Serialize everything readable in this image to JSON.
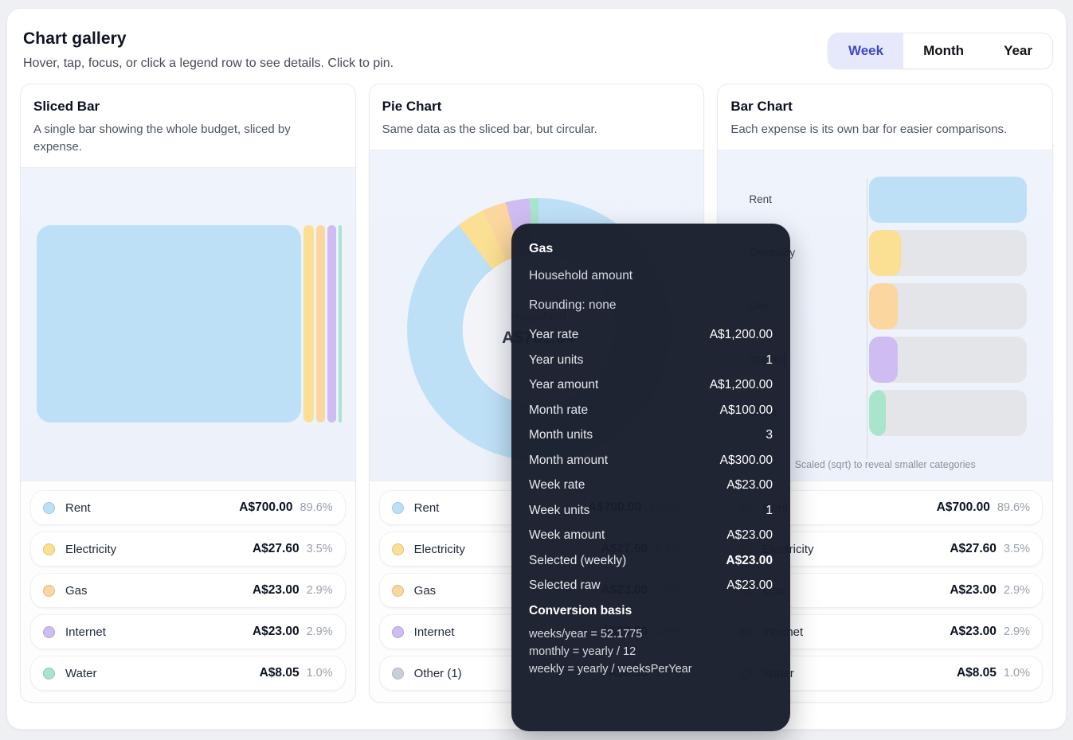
{
  "page": {
    "title": "Chart gallery",
    "subtitle": "Hover, tap, focus, or click a legend row to see details. Click to pin."
  },
  "period_toggle": {
    "options": [
      "Week",
      "Month",
      "Year"
    ],
    "selected": "Week"
  },
  "colors": {
    "rent": "#bee0f7",
    "electricity": "#fbdf92",
    "gas": "#fbd69e",
    "internet": "#cfbcf2",
    "water": "#a9e4cd",
    "other": "#c9cfd9",
    "bar_track": "#e3e5e9",
    "toggle_active_bg": "#e6e9fb",
    "toggle_active_text": "#3d48c5",
    "tooltip_bg": "rgba(24,30,43,0.97)"
  },
  "cards": [
    {
      "title": "Sliced Bar",
      "description": "A single bar showing the whole budget, sliced by expense.",
      "slices": [
        {
          "label": "Rent",
          "percent": 89.6,
          "color": "#bee0f7"
        },
        {
          "label": "Electricity",
          "percent": 3.5,
          "color": "#fbdf92"
        },
        {
          "label": "Gas",
          "percent": 2.9,
          "color": "#fbd69e"
        },
        {
          "label": "Internet",
          "percent": 2.9,
          "color": "#cfbcf2"
        },
        {
          "label": "Water",
          "percent": 1.0,
          "color": "#a9e4cd"
        }
      ],
      "legend": [
        {
          "label": "Rent",
          "amount": "A$700.00",
          "percent": "89.6%",
          "color": "#bee0f7"
        },
        {
          "label": "Electricity",
          "amount": "A$27.60",
          "percent": "3.5%",
          "color": "#fbdf92"
        },
        {
          "label": "Gas",
          "amount": "A$23.00",
          "percent": "2.9%",
          "color": "#fbd69e"
        },
        {
          "label": "Internet",
          "amount": "A$23.00",
          "percent": "2.9%",
          "color": "#cfbcf2"
        },
        {
          "label": "Water",
          "amount": "A$8.05",
          "percent": "1.0%",
          "color": "#a9e4cd"
        }
      ]
    },
    {
      "title": "Pie Chart",
      "description": "Same data as the sliced bar, but circular.",
      "center": {
        "label": "Household",
        "total": "A$781.64"
      },
      "slices": [
        {
          "label": "Rent",
          "percent": 89.6,
          "color": "#bee0f7"
        },
        {
          "label": "Electricity",
          "percent": 3.5,
          "color": "#fbdf92"
        },
        {
          "label": "Gas",
          "percent": 2.9,
          "color": "#fbd69e"
        },
        {
          "label": "Internet",
          "percent": 2.9,
          "color": "#cfbcf2"
        },
        {
          "label": "Water",
          "percent": 1.0,
          "color": "#a9e4cd"
        }
      ],
      "legend": [
        {
          "label": "Rent",
          "amount": "A$700.00",
          "percent": "89.6%",
          "color": "#bee0f7"
        },
        {
          "label": "Electricity",
          "amount": "A$27.60",
          "percent": "3.5%",
          "color": "#fbdf92"
        },
        {
          "label": "Gas",
          "amount": "A$23.00",
          "percent": "2.9%",
          "color": "#fbd69e"
        },
        {
          "label": "Internet",
          "amount": "A$23.00",
          "percent": "2.9%",
          "color": "#cfbcf2"
        },
        {
          "label": "Other (1)",
          "amount": "A$8.05",
          "percent": "1.0%",
          "color": "#c9cfd9"
        }
      ]
    },
    {
      "title": "Bar Chart",
      "description": "Each expense is its own bar for easier comparisons.",
      "caption": "Scaled (sqrt) to reveal smaller categories",
      "bars": [
        {
          "label": "Rent",
          "fill_pct": 100,
          "color": "#bee0f7"
        },
        {
          "label": "Electricity",
          "fill_pct": 19.9,
          "color": "#fbdf92"
        },
        {
          "label": "Gas",
          "fill_pct": 18.1,
          "color": "#fbd69e"
        },
        {
          "label": "Internet",
          "fill_pct": 18.1,
          "color": "#cfbcf2"
        },
        {
          "label": "Water",
          "fill_pct": 10.7,
          "color": "#a9e4cd"
        }
      ],
      "legend": [
        {
          "label": "Rent",
          "amount": "A$700.00",
          "percent": "89.6%",
          "color": "#bee0f7"
        },
        {
          "label": "Electricity",
          "amount": "A$27.60",
          "percent": "3.5%",
          "color": "#fbdf92"
        },
        {
          "label": "Gas",
          "amount": "A$23.00",
          "percent": "2.9%",
          "color": "#fbd69e"
        },
        {
          "label": "Internet",
          "amount": "A$23.00",
          "percent": "2.9%",
          "color": "#cfbcf2"
        },
        {
          "label": "Water",
          "amount": "A$8.05",
          "percent": "1.0%",
          "color": "#a9e4cd"
        }
      ]
    }
  ],
  "tooltip": {
    "title": "Gas",
    "subtitle": "Household amount",
    "rounding": "Rounding: none",
    "rows": [
      {
        "label": "Year rate",
        "value": "A$1,200.00",
        "bold": false
      },
      {
        "label": "Year units",
        "value": "1",
        "bold": false
      },
      {
        "label": "Year amount",
        "value": "A$1,200.00",
        "bold": false
      },
      {
        "label": "Month rate",
        "value": "A$100.00",
        "bold": false
      },
      {
        "label": "Month units",
        "value": "3",
        "bold": false
      },
      {
        "label": "Month amount",
        "value": "A$300.00",
        "bold": false
      },
      {
        "label": "Week rate",
        "value": "A$23.00",
        "bold": false
      },
      {
        "label": "Week units",
        "value": "1",
        "bold": false
      },
      {
        "label": "Week amount",
        "value": "A$23.00",
        "bold": false
      },
      {
        "label": "Selected (weekly)",
        "value": "A$23.00",
        "bold": true
      },
      {
        "label": "Selected raw",
        "value": "A$23.00",
        "bold": false
      }
    ],
    "basis_title": "Conversion basis",
    "basis_lines": [
      "weeks/year = 52.1775",
      "monthly = yearly / 12",
      "weekly = yearly / weeksPerYear"
    ]
  },
  "chart_data": [
    {
      "type": "bar",
      "variant": "single-stacked-horizontal",
      "title": "Sliced Bar",
      "categories": [
        "Rent",
        "Electricity",
        "Gas",
        "Internet",
        "Water"
      ],
      "values": [
        700.0,
        27.6,
        23.0,
        23.0,
        8.05
      ],
      "percents": [
        89.6,
        3.5,
        2.9,
        2.9,
        1.0
      ],
      "currency": "AUD",
      "period": "Week",
      "total_label": "Household",
      "total_display": "A$781.64",
      "legend_position": "bottom"
    },
    {
      "type": "pie",
      "variant": "donut",
      "title": "Pie Chart",
      "categories": [
        "Rent",
        "Electricity",
        "Gas",
        "Internet",
        "Other (1)"
      ],
      "values": [
        700.0,
        27.6,
        23.0,
        23.0,
        8.05
      ],
      "percents": [
        89.6,
        3.5,
        2.9,
        2.9,
        1.0
      ],
      "currency": "AUD",
      "center_label": "Household",
      "center_value": "A$781.64",
      "legend_position": "bottom"
    },
    {
      "type": "bar",
      "orientation": "horizontal",
      "scale": "sqrt",
      "title": "Bar Chart",
      "categories": [
        "Rent",
        "Electricity",
        "Gas",
        "Internet",
        "Water"
      ],
      "values": [
        700.0,
        27.6,
        23.0,
        23.0,
        8.05
      ],
      "bar_fill_percent_of_max": [
        100,
        19.9,
        18.1,
        18.1,
        10.7
      ],
      "currency": "AUD",
      "note": "Scaled (sqrt) to reveal smaller categories",
      "legend_position": "bottom"
    }
  ]
}
